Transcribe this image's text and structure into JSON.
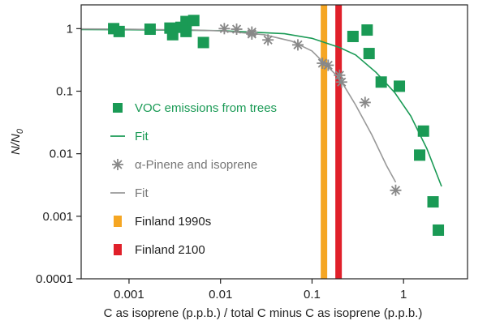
{
  "chart_data": {
    "type": "scatter",
    "xlabel": "C as isoprene (p.p.b.) / total C minus C as isoprene (p.p.b.)",
    "ylabel": "N/N",
    "ylabel_subscript": "0",
    "x_scale": "log",
    "y_scale": "log",
    "xlim": [
      0.0003,
      5
    ],
    "ylim": [
      0.0001,
      2.4
    ],
    "x_ticks": [
      {
        "value": 0.001,
        "label": "0.001"
      },
      {
        "value": 0.01,
        "label": "0.01"
      },
      {
        "value": 0.1,
        "label": "0.1"
      },
      {
        "value": 1,
        "label": "1"
      }
    ],
    "y_ticks": [
      {
        "value": 1,
        "label": "1"
      },
      {
        "value": 0.1,
        "label": "0.1"
      },
      {
        "value": 0.01,
        "label": "0.01"
      },
      {
        "value": 0.001,
        "label": "0.001"
      },
      {
        "value": 0.0001,
        "label": "0.0001"
      }
    ],
    "grid": false,
    "legend_position": "left",
    "vertical_bands": [
      {
        "name": "Finland 1990s",
        "x": 0.135,
        "color": "#f5a623"
      },
      {
        "name": "Finland 2100",
        "x": 0.195,
        "color": "#e0202a"
      }
    ],
    "series": [
      {
        "name": "VOC emissions from trees",
        "type": "scatter",
        "marker": "square",
        "color": "#1a9a55",
        "x": [
          0.00068,
          0.00078,
          0.0017,
          0.0028,
          0.003,
          0.0037,
          0.0042,
          0.0042,
          0.0051,
          0.0065,
          0.28,
          0.4,
          0.42,
          0.57,
          0.9,
          1.5,
          1.65,
          2.1,
          2.4
        ],
        "y": [
          1.0,
          0.9,
          0.98,
          1.02,
          0.8,
          1.05,
          1.3,
          0.9,
          1.35,
          0.6,
          0.75,
          0.95,
          0.4,
          0.14,
          0.12,
          0.0095,
          0.023,
          0.0017,
          0.0006
        ]
      },
      {
        "name": "Fit",
        "type": "line",
        "color": "#1a9a55",
        "x": [
          0.0003,
          0.001,
          0.01,
          0.05,
          0.1,
          0.2,
          0.3,
          0.5,
          0.8,
          1.2,
          1.8,
          2.6
        ],
        "y": [
          0.97,
          0.96,
          0.93,
          0.83,
          0.7,
          0.5,
          0.38,
          0.2,
          0.095,
          0.04,
          0.012,
          0.003
        ]
      },
      {
        "name": "α-Pinene and isoprene",
        "type": "scatter",
        "marker": "asterisk",
        "color": "#888888",
        "x": [
          0.011,
          0.015,
          0.022,
          0.022,
          0.033,
          0.07,
          0.13,
          0.15,
          0.2,
          0.21,
          0.38,
          0.82
        ],
        "y": [
          1.0,
          0.98,
          0.88,
          0.82,
          0.66,
          0.55,
          0.28,
          0.26,
          0.18,
          0.14,
          0.066,
          0.0026
        ]
      },
      {
        "name": "Fit",
        "type": "line",
        "color": "#999999",
        "x": [
          0.0003,
          0.001,
          0.005,
          0.01,
          0.03,
          0.06,
          0.1,
          0.2,
          0.3,
          0.45,
          0.65,
          0.82
        ],
        "y": [
          0.99,
          0.98,
          0.95,
          0.92,
          0.8,
          0.63,
          0.44,
          0.16,
          0.06,
          0.02,
          0.0065,
          0.0035
        ]
      }
    ],
    "legend": [
      {
        "label": "VOC emissions from trees",
        "symbol": "square",
        "color": "#1a9a55",
        "text_color": "#1a9a55"
      },
      {
        "label": "Fit",
        "symbol": "line",
        "color": "#1a9a55",
        "text_color": "#1a9a55"
      },
      {
        "label": "α-Pinene and isoprene",
        "symbol": "asterisk",
        "color": "#888888",
        "text_color": "#777777"
      },
      {
        "label": "Fit",
        "symbol": "line",
        "color": "#999999",
        "text_color": "#777777"
      },
      {
        "label": "Finland 1990s",
        "symbol": "band",
        "color": "#f5a623",
        "text_color": "#222222"
      },
      {
        "label": "Finland 2100",
        "symbol": "band",
        "color": "#e0202a",
        "text_color": "#222222"
      }
    ]
  }
}
